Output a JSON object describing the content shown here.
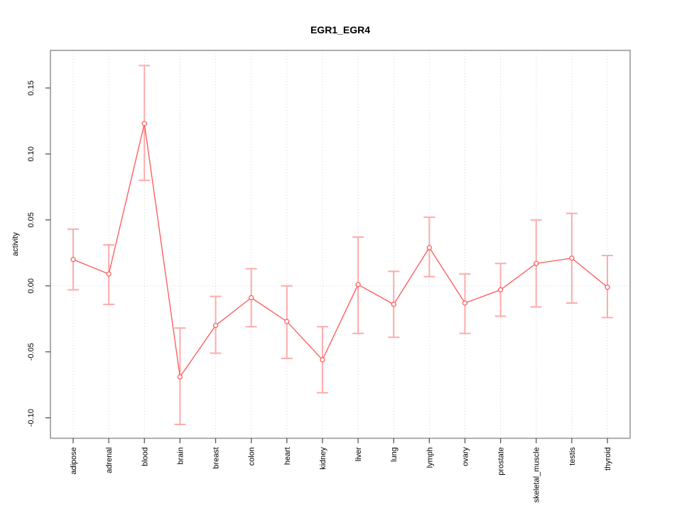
{
  "title": "EGR1_EGR4",
  "chart_data": {
    "type": "line",
    "title": "EGR1_EGR4",
    "xlabel": "",
    "ylabel": "activity",
    "categories": [
      "adipose",
      "adrenal",
      "blood",
      "brain",
      "breast",
      "colon",
      "heart",
      "kidney",
      "liver",
      "lung",
      "lymph",
      "ovary",
      "prostate",
      "skeletal_muscle",
      "testis",
      "thyroid"
    ],
    "series": [
      {
        "name": "activity",
        "values": [
          0.02,
          0.009,
          0.123,
          -0.069,
          -0.03,
          -0.009,
          -0.027,
          -0.056,
          0.001,
          -0.014,
          0.029,
          -0.013,
          -0.003,
          0.017,
          0.021,
          -0.001
        ],
        "err_high": [
          0.043,
          0.031,
          0.167,
          -0.032,
          -0.008,
          0.013,
          0.0,
          -0.031,
          0.037,
          0.011,
          0.052,
          0.009,
          0.017,
          0.05,
          0.055,
          0.023
        ],
        "err_low": [
          -0.003,
          -0.014,
          0.08,
          -0.105,
          -0.051,
          -0.031,
          -0.055,
          -0.081,
          -0.036,
          -0.039,
          0.007,
          -0.036,
          -0.023,
          -0.016,
          -0.013,
          -0.024
        ]
      }
    ],
    "yticks": [
      -0.1,
      -0.05,
      0.0,
      0.05,
      0.1,
      0.15
    ],
    "ylim": [
      -0.1155,
      0.1785
    ],
    "grid": "vertical-dotted-per-category-plus-dotted-zero-line",
    "legend_position": "none",
    "marker": "open-circle",
    "colors": {
      "line": "#ff5555",
      "marker_fill": "#ffffff",
      "error_bar": "#ffaaaa",
      "grid": "#d4d4d4",
      "zero_line": "#d4d4d4",
      "box": "#999999",
      "tick": "#555555",
      "text": "#000000"
    }
  }
}
